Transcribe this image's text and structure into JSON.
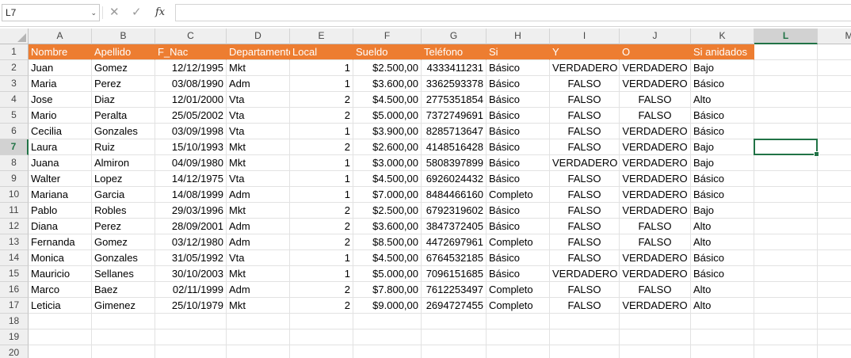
{
  "formula_bar": {
    "name_box": "L7",
    "dropdown_icon": "chevron-down-icon",
    "cancel_icon": "close-icon",
    "enter_icon": "check-icon",
    "fx_label": "fx",
    "formula_value": ""
  },
  "sheet": {
    "columns": [
      "A",
      "B",
      "C",
      "D",
      "E",
      "F",
      "G",
      "H",
      "I",
      "J",
      "K",
      "L",
      "M"
    ],
    "selected_column": "L",
    "selected_row": 7,
    "selected_cell": "L7",
    "header_fill_color": "#ed7d31",
    "header_text_color": "#ffffff",
    "selection_color": "#217346",
    "row_numbers": [
      1,
      2,
      3,
      4,
      5,
      6,
      7,
      8,
      9,
      10,
      11,
      12,
      13,
      14,
      15,
      16,
      17,
      18,
      19,
      20
    ],
    "headers": [
      "Nombre",
      "Apellido",
      "F_Nac",
      "Departamento",
      "Local",
      "Sueldo",
      "Teléfono",
      "Si",
      "Y",
      "O",
      "Si anidados"
    ],
    "rows": [
      [
        "Juan",
        "Gomez",
        "12/12/1995",
        "Mkt",
        "1",
        "$2.500,00",
        "4333411231",
        "Básico",
        "VERDADERO",
        "VERDADERO",
        "Bajo"
      ],
      [
        "Maria",
        "Perez",
        "03/08/1990",
        "Adm",
        "1",
        "$3.600,00",
        "3362593378",
        "Básico",
        "FALSO",
        "VERDADERO",
        "Básico"
      ],
      [
        "Jose",
        "Diaz",
        "12/01/2000",
        "Vta",
        "2",
        "$4.500,00",
        "2775351854",
        "Básico",
        "FALSO",
        "FALSO",
        "Alto"
      ],
      [
        "Mario",
        "Peralta",
        "25/05/2002",
        "Vta",
        "2",
        "$5.000,00",
        "7372749691",
        "Básico",
        "FALSO",
        "FALSO",
        "Básico"
      ],
      [
        "Cecilia",
        "Gonzales",
        "03/09/1998",
        "Vta",
        "1",
        "$3.900,00",
        "8285713647",
        "Básico",
        "FALSO",
        "VERDADERO",
        "Básico"
      ],
      [
        "Laura",
        "Ruiz",
        "15/10/1993",
        "Mkt",
        "2",
        "$2.600,00",
        "4148516428",
        "Básico",
        "FALSO",
        "VERDADERO",
        "Bajo"
      ],
      [
        "Juana",
        "Almiron",
        "04/09/1980",
        "Mkt",
        "1",
        "$3.000,00",
        "5808397899",
        "Básico",
        "VERDADERO",
        "VERDADERO",
        "Bajo"
      ],
      [
        "Walter",
        "Lopez",
        "14/12/1975",
        "Vta",
        "1",
        "$4.500,00",
        "6926024432",
        "Básico",
        "FALSO",
        "VERDADERO",
        "Básico"
      ],
      [
        "Mariana",
        "Garcia",
        "14/08/1999",
        "Adm",
        "1",
        "$7.000,00",
        "8484466160",
        "Completo",
        "FALSO",
        "VERDADERO",
        "Básico"
      ],
      [
        "Pablo",
        "Robles",
        "29/03/1996",
        "Mkt",
        "2",
        "$2.500,00",
        "6792319602",
        "Básico",
        "FALSO",
        "VERDADERO",
        "Bajo"
      ],
      [
        "Diana",
        "Perez",
        "28/09/2001",
        "Adm",
        "2",
        "$3.600,00",
        "3847372405",
        "Básico",
        "FALSO",
        "FALSO",
        "Alto"
      ],
      [
        "Fernanda",
        "Gomez",
        "03/12/1980",
        "Adm",
        "2",
        "$8.500,00",
        "4472697961",
        "Completo",
        "FALSO",
        "FALSO",
        "Alto"
      ],
      [
        "Monica",
        "Gonzales",
        "31/05/1992",
        "Vta",
        "1",
        "$4.500,00",
        "6764532185",
        "Básico",
        "FALSO",
        "VERDADERO",
        "Básico"
      ],
      [
        "Mauricio",
        "Sellanes",
        "30/10/2003",
        "Mkt",
        "1",
        "$5.000,00",
        "7096151685",
        "Básico",
        "VERDADERO",
        "VERDADERO",
        "Básico"
      ],
      [
        "Marco",
        "Baez",
        "02/11/1999",
        "Adm",
        "2",
        "$7.800,00",
        "7612253497",
        "Completo",
        "FALSO",
        "FALSO",
        "Alto"
      ],
      [
        "Leticia",
        "Gimenez",
        "25/10/1979",
        "Mkt",
        "2",
        "$9.000,00",
        "2694727455",
        "Completo",
        "FALSO",
        "VERDADERO",
        "Alto"
      ]
    ]
  }
}
